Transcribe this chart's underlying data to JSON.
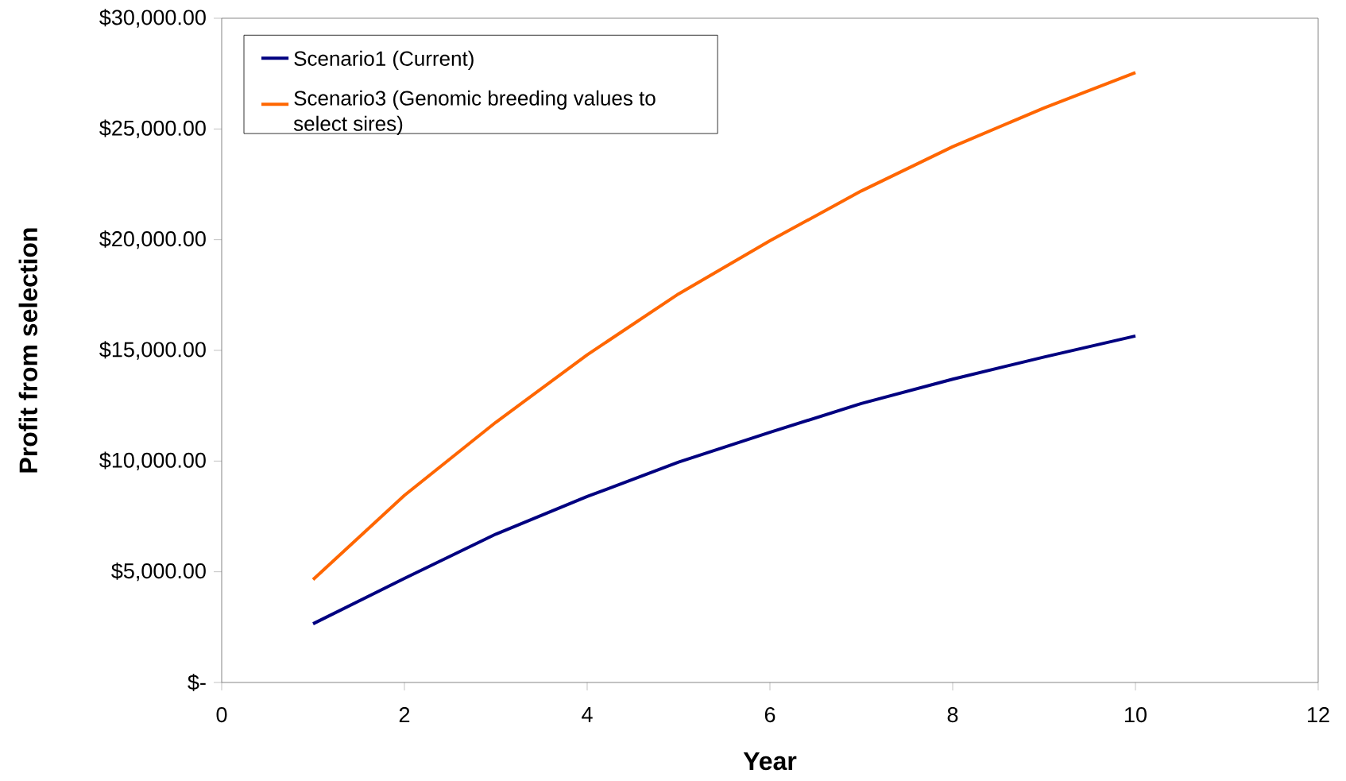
{
  "chart_data": {
    "type": "line",
    "xlabel": "Year",
    "ylabel": "Profit from selection",
    "x": [
      1,
      2,
      3,
      4,
      5,
      6,
      7,
      8,
      9,
      10
    ],
    "series": [
      {
        "name": "Scenario1 (Current)",
        "color": "#000080",
        "values": [
          2650,
          4700,
          6700,
          8400,
          9950,
          11300,
          12600,
          13700,
          14700,
          15650
        ]
      },
      {
        "name": "Scenario3 (Genomic breeding values to select sires)",
        "color": "#ff6600",
        "values": [
          4650,
          8450,
          11750,
          14800,
          17550,
          19950,
          22200,
          24200,
          25950,
          27550
        ]
      }
    ],
    "xlim": [
      0,
      12
    ],
    "xticks": [
      0,
      2,
      4,
      6,
      8,
      10,
      12
    ],
    "ylim": [
      0,
      30000
    ],
    "yticks": [
      {
        "value": 0,
        "label": "$-"
      },
      {
        "value": 5000,
        "label": "$5,000.00"
      },
      {
        "value": 10000,
        "label": "$10,000.00"
      },
      {
        "value": 15000,
        "label": "$15,000.00"
      },
      {
        "value": 20000,
        "label": "$20,000.00"
      },
      {
        "value": 25000,
        "label": "$25,000.00"
      },
      {
        "value": 30000,
        "label": "$30,000.00"
      }
    ],
    "grid": false,
    "legend": "top left",
    "marker": "none",
    "line_style": "solid"
  }
}
